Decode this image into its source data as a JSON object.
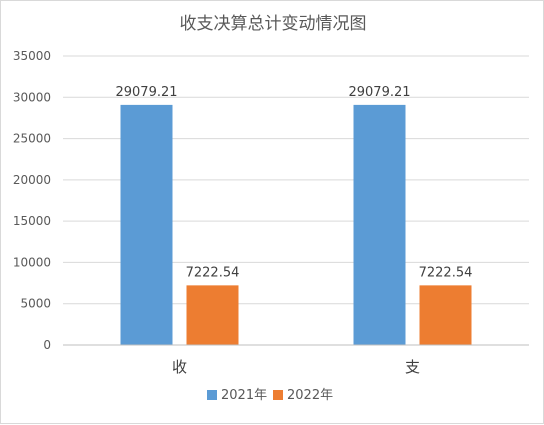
{
  "chart_data": {
    "type": "bar",
    "title": "收支决算总计变动情况图",
    "categories": [
      "收",
      "支"
    ],
    "series": [
      {
        "name": "2021年",
        "color": "#5b9bd5",
        "values": [
          29079.21,
          29079.21
        ]
      },
      {
        "name": "2022年",
        "color": "#ed7d31",
        "values": [
          7222.54,
          7222.54
        ]
      }
    ],
    "data_labels": [
      [
        "29079.21",
        "29079.21"
      ],
      [
        "7222.54",
        "7222.54"
      ]
    ],
    "ylim": [
      0,
      35000
    ],
    "yticks": [
      0,
      5000,
      10000,
      15000,
      20000,
      25000,
      30000,
      35000
    ],
    "ytick_labels": [
      "0",
      "5000",
      "10000",
      "15000",
      "20000",
      "25000",
      "30000",
      "35000"
    ],
    "grid": true,
    "legend_position": "bottom"
  }
}
